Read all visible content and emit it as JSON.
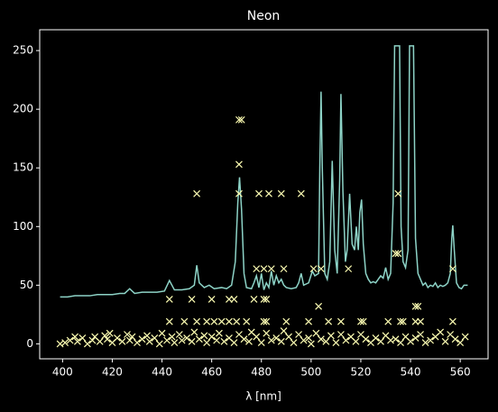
{
  "chart_data": {
    "type": "line",
    "title": "Neon",
    "x_label": "λ [nm]",
    "xlim": [
      390.8,
      571.2
    ],
    "ylim": [
      -12.75,
      267.75
    ],
    "xticks": [
      400,
      420,
      440,
      460,
      480,
      500,
      520,
      540,
      560
    ],
    "yticks": [
      0,
      50,
      100,
      150,
      200,
      250
    ],
    "background": "#000000",
    "axis_color": "#ffffff",
    "series": [
      {
        "type": "line",
        "color": "#8dd3c7",
        "x": [
          399,
          402,
          405,
          408,
          411,
          414,
          417,
          420,
          423,
          425,
          427,
          429,
          432,
          435,
          438,
          441,
          443,
          445,
          448,
          451,
          453,
          454,
          455,
          457,
          459,
          461,
          464,
          466,
          468,
          469.5,
          470.5,
          471.2,
          472,
          473,
          474,
          476,
          477,
          478,
          479,
          480,
          481,
          482,
          483,
          484,
          485,
          486,
          487,
          488,
          489,
          490,
          492,
          494,
          495,
          496,
          497,
          499,
          500.5,
          501.5,
          503,
          503.5,
          504,
          504.5,
          505.5,
          506.5,
          507.5,
          508.5,
          509.5,
          510.5,
          511.5,
          512,
          512.8,
          513.8,
          514.5,
          515.5,
          516.5,
          517.5,
          518.2,
          519,
          519.6,
          520.3,
          521,
          522,
          523,
          524,
          525,
          526,
          527,
          528,
          529,
          530,
          531,
          532,
          533,
          533.6,
          535.6,
          536.2,
          537,
          538,
          539,
          539.6,
          541.2,
          542,
          543,
          544,
          545,
          546,
          547,
          548,
          549,
          550,
          551,
          552,
          553,
          554,
          555,
          556,
          556.6,
          557,
          557.6,
          558.5,
          559.5,
          560.5,
          561.5,
          562,
          563
        ],
        "values": [
          40,
          40,
          41,
          41,
          41,
          42,
          42,
          42,
          43,
          43,
          47,
          43,
          44,
          44,
          44,
          45,
          54,
          46,
          46,
          47,
          50,
          67,
          52,
          48,
          50,
          47,
          48,
          47,
          50,
          70,
          120,
          142,
          115,
          60,
          48,
          47,
          52,
          58,
          48,
          60,
          46,
          52,
          48,
          62,
          50,
          58,
          52,
          55,
          50,
          48,
          47,
          48,
          52,
          60,
          50,
          52,
          62,
          58,
          60,
          150,
          215,
          150,
          60,
          55,
          70,
          156,
          80,
          60,
          140,
          213,
          130,
          70,
          80,
          128,
          85,
          80,
          100,
          80,
          112,
          123,
          85,
          60,
          55,
          52,
          53,
          52,
          55,
          58,
          56,
          65,
          55,
          60,
          120,
          254,
          254,
          100,
          70,
          65,
          80,
          254,
          254,
          90,
          60,
          55,
          50,
          52,
          48,
          50,
          49,
          52,
          48,
          50,
          49,
          50,
          52,
          60,
          90,
          101,
          80,
          52,
          48,
          47,
          50,
          50,
          50
        ]
      },
      {
        "type": "scatter",
        "color": "#ffffb3",
        "x": [
          471,
          472,
          471,
          471,
          454,
          479,
          483,
          488,
          496,
          535,
          478,
          481,
          484,
          489,
          501,
          504,
          515,
          557,
          534,
          535,
          443,
          452,
          460,
          467,
          469,
          477,
          481,
          482,
          503,
          542,
          543,
          443,
          449,
          454,
          458,
          461,
          464,
          467,
          470,
          474,
          481,
          482,
          490,
          499,
          507,
          512,
          520,
          521,
          531,
          536,
          537,
          542,
          544,
          557,
          399,
          401,
          403,
          405,
          406,
          408,
          410,
          412,
          413,
          415,
          417,
          418,
          419,
          420,
          422,
          424,
          426,
          427,
          428,
          430,
          432,
          434,
          435,
          437,
          439,
          440,
          442,
          444,
          445,
          447,
          448,
          450,
          452,
          453,
          455,
          457,
          458,
          460,
          462,
          463,
          465,
          467,
          469,
          471,
          473,
          475,
          476,
          478,
          480,
          482,
          484,
          486,
          488,
          489,
          491,
          493,
          495,
          497,
          499,
          500,
          502,
          504,
          506,
          508,
          510,
          512,
          514,
          516,
          518,
          520,
          522,
          524,
          526,
          528,
          530,
          532,
          534,
          536,
          538,
          540,
          542,
          544,
          546,
          548,
          550,
          552,
          554,
          556,
          558,
          560,
          562
        ],
        "values": [
          191,
          191,
          153,
          128,
          128,
          128,
          128,
          128,
          128,
          128,
          64,
          64,
          64,
          64,
          64,
          64,
          64,
          64,
          77,
          77,
          38,
          38,
          38,
          38,
          38,
          38,
          38,
          38,
          32,
          32,
          32,
          19,
          19,
          19,
          19,
          19,
          19,
          19,
          19,
          19,
          19,
          19,
          19,
          19,
          19,
          19,
          19,
          19,
          19,
          19,
          19,
          19,
          19,
          19,
          0,
          1,
          3,
          6,
          2,
          5,
          0,
          3,
          6,
          2,
          7,
          4,
          9,
          1,
          5,
          2,
          8,
          3,
          6,
          1,
          4,
          7,
          2,
          5,
          0,
          9,
          3,
          6,
          1,
          8,
          3,
          5,
          2,
          10,
          4,
          7,
          1,
          6,
          3,
          9,
          2,
          5,
          1,
          8,
          4,
          2,
          10,
          6,
          1,
          9,
          3,
          5,
          2,
          11,
          6,
          1,
          8,
          3,
          5,
          0,
          9,
          4,
          2,
          7,
          1,
          8,
          3,
          6,
          2,
          8,
          4,
          1,
          5,
          2,
          7,
          3,
          4,
          1,
          6,
          2,
          5,
          8,
          1,
          3,
          6,
          10,
          2,
          8,
          4,
          1,
          6
        ]
      }
    ]
  }
}
